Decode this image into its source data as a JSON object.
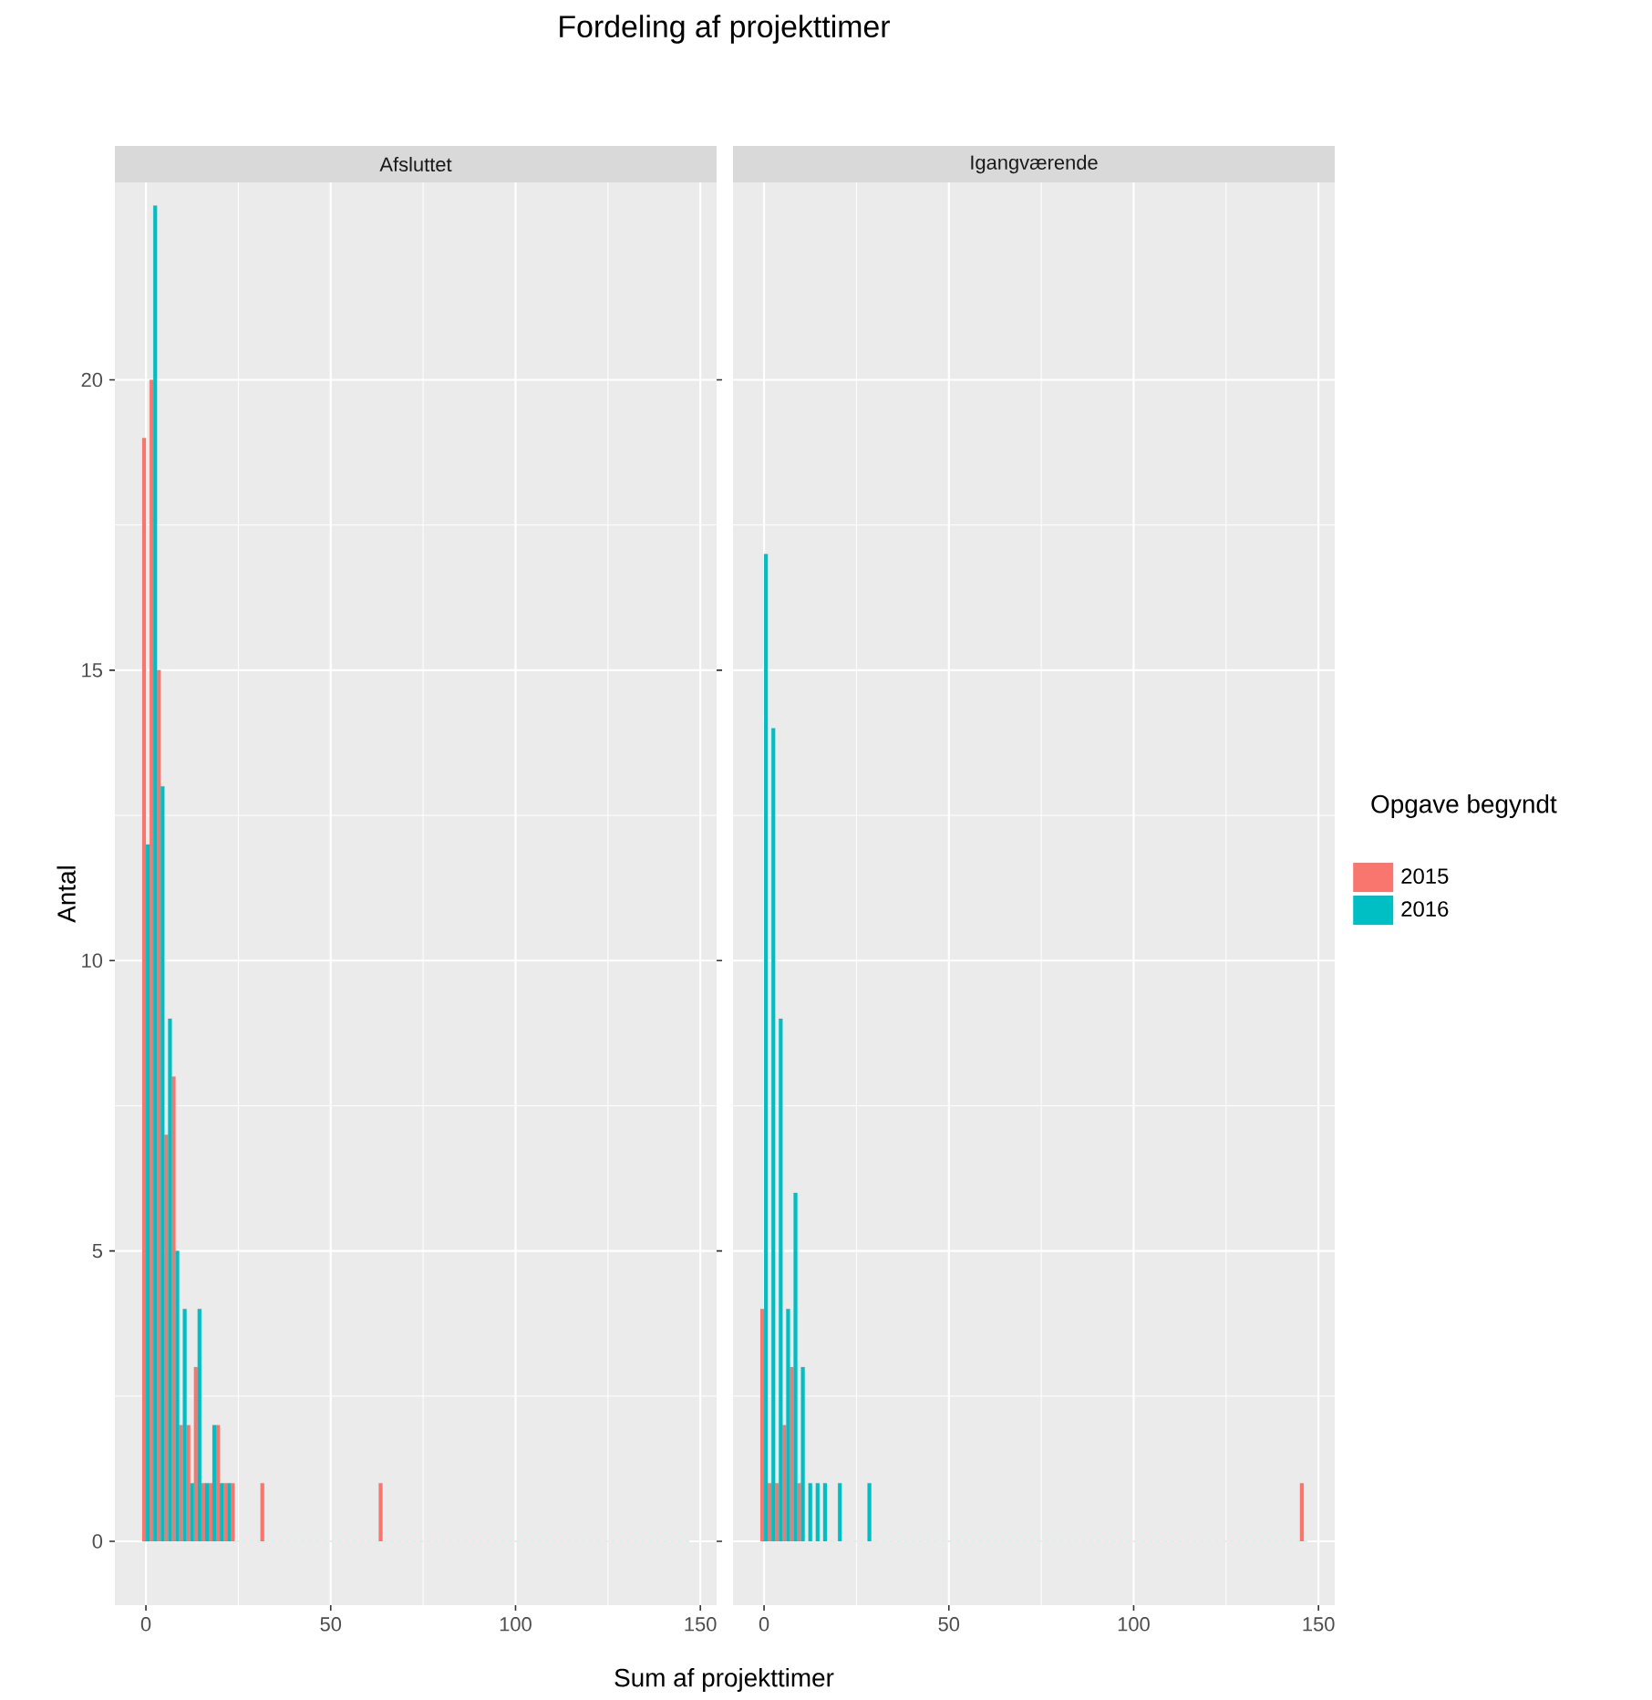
{
  "chart_data": [
    {
      "type": "histogram",
      "title": "Fordeling af projekttimer",
      "subtitle": "Afsluttet",
      "xlabel": "Sum af projekttimer",
      "ylabel": "Antal",
      "bins": [
        -1,
        1,
        3,
        5,
        7,
        9,
        11,
        13,
        15,
        17,
        19,
        21,
        23,
        25,
        27,
        29,
        31,
        33,
        35,
        37,
        39,
        41,
        43,
        45,
        47,
        49,
        51,
        53,
        55,
        57,
        59,
        61,
        63,
        65,
        67,
        69,
        71,
        73,
        75,
        77,
        79,
        81,
        83,
        85,
        87,
        89,
        91,
        93,
        95,
        97,
        99,
        101,
        103,
        105,
        107,
        109,
        111,
        113,
        115,
        117,
        119,
        121,
        123,
        125,
        127,
        129,
        131,
        133,
        135,
        137,
        139,
        141,
        143,
        145,
        147
      ],
      "series": [
        {
          "color": "#f8766d",
          "values": [
            19,
            20,
            15,
            7,
            8,
            2,
            2,
            3,
            1,
            1,
            2,
            1,
            1,
            0,
            0,
            0,
            1,
            0,
            0,
            0,
            0,
            0,
            0,
            0,
            0,
            0,
            0,
            0,
            0,
            0,
            0,
            0,
            1,
            0,
            0,
            0,
            0,
            0,
            0,
            0,
            0,
            0,
            0,
            0,
            0,
            0,
            0,
            0,
            0,
            0,
            0,
            0,
            0,
            0,
            0,
            0,
            0,
            0,
            0,
            0,
            0,
            0,
            0,
            0,
            0,
            0,
            0,
            0,
            0,
            0,
            0,
            0,
            0,
            0
          ]
        },
        {
          "color": "#00bfc4",
          "values": [
            12,
            23,
            13,
            9,
            5,
            4,
            1,
            4,
            1,
            2,
            1,
            1,
            0,
            0,
            0,
            0,
            0,
            0,
            0,
            0,
            0,
            0,
            0,
            0,
            0,
            0,
            0,
            0,
            0,
            0,
            0,
            0,
            0,
            0,
            0,
            0,
            0,
            0,
            0,
            0,
            0,
            0,
            0,
            0,
            0,
            0,
            0,
            0,
            0,
            0,
            0,
            0,
            0,
            0,
            0,
            0,
            0,
            0,
            0,
            0,
            0,
            0,
            0,
            0,
            0,
            0,
            0,
            0,
            0,
            0,
            0,
            0,
            0,
            0
          ]
        }
      ],
      "xlim": [
        -8.4,
        154.4
      ],
      "ylim": [
        -1.1,
        23.4
      ],
      "xticks": [
        0,
        50,
        100,
        150
      ],
      "yticks": [
        0,
        5,
        10,
        15,
        20
      ],
      "grid": true
    },
    {
      "type": "histogram",
      "subtitle": "Igangværende",
      "legend_title": "Opgave begyndt",
      "bins": [
        -1,
        1,
        3,
        5,
        7,
        9,
        11,
        13,
        15,
        17,
        19,
        21,
        23,
        25,
        27,
        29,
        31,
        33,
        35,
        37,
        39,
        41,
        43,
        45,
        47,
        49,
        51,
        53,
        55,
        57,
        59,
        61,
        63,
        65,
        67,
        69,
        71,
        73,
        75,
        77,
        79,
        81,
        83,
        85,
        87,
        89,
        91,
        93,
        95,
        97,
        99,
        101,
        103,
        105,
        107,
        109,
        111,
        113,
        115,
        117,
        119,
        121,
        123,
        125,
        127,
        129,
        131,
        133,
        135,
        137,
        139,
        141,
        143,
        145,
        147
      ],
      "series": [
        {
          "name": "2015",
          "color": "#f8766d",
          "values": [
            4,
            1,
            1,
            2,
            3,
            1,
            0,
            0,
            0,
            0,
            0,
            0,
            0,
            0,
            0,
            0,
            0,
            0,
            0,
            0,
            0,
            0,
            0,
            0,
            0,
            0,
            0,
            0,
            0,
            0,
            0,
            0,
            0,
            0,
            0,
            0,
            0,
            0,
            0,
            0,
            0,
            0,
            0,
            0,
            0,
            0,
            0,
            0,
            0,
            0,
            0,
            0,
            0,
            0,
            0,
            0,
            0,
            0,
            0,
            0,
            0,
            0,
            0,
            0,
            0,
            0,
            0,
            0,
            0,
            0,
            0,
            0,
            0,
            1
          ]
        },
        {
          "name": "2016",
          "color": "#00bfc4",
          "values": [
            17,
            14,
            9,
            4,
            6,
            3,
            1,
            1,
            1,
            0,
            1,
            0,
            0,
            0,
            1,
            0,
            0,
            0,
            0,
            0,
            0,
            0,
            0,
            0,
            0,
            0,
            0,
            0,
            0,
            0,
            0,
            0,
            0,
            0,
            0,
            0,
            0,
            0,
            0,
            0,
            0,
            0,
            0,
            0,
            0,
            0,
            0,
            0,
            0,
            0,
            0,
            0,
            0,
            0,
            0,
            0,
            0,
            0,
            0,
            0,
            0,
            0,
            0,
            0,
            0,
            0,
            0,
            0,
            0,
            0,
            0,
            0,
            0,
            0
          ]
        }
      ],
      "xlim": [
        -8.4,
        154.4
      ],
      "ylim": [
        -1.1,
        23.4
      ],
      "xticks": [
        0,
        50,
        100,
        150
      ],
      "yticks": [
        0,
        5,
        10,
        15,
        20
      ],
      "grid": true,
      "tick_labels": "x",
      "legend": "right"
    }
  ]
}
